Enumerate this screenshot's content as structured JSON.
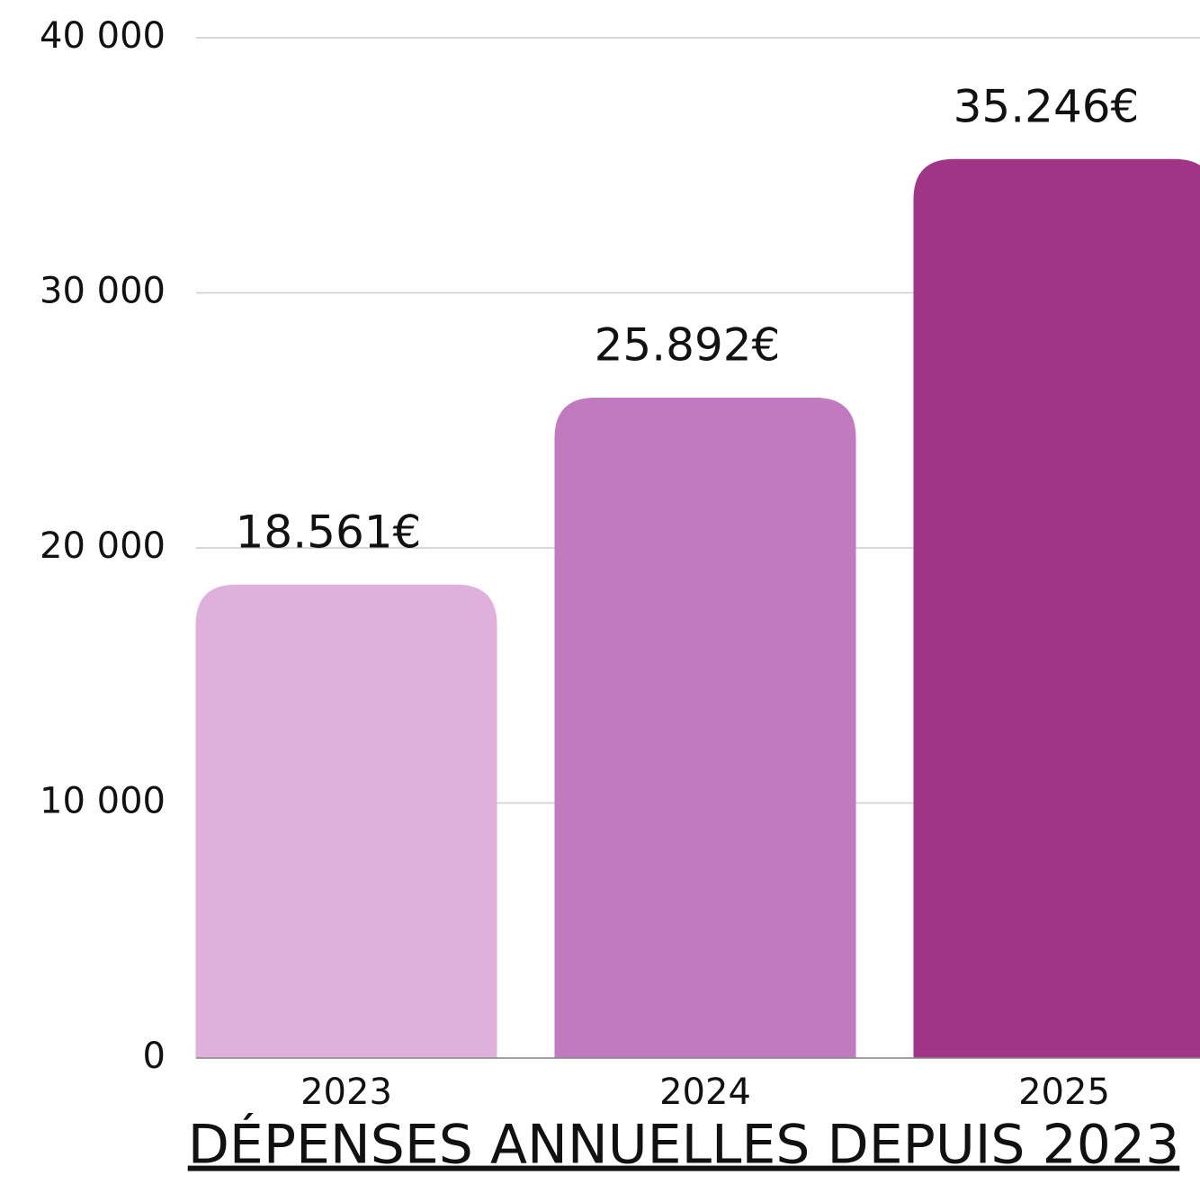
{
  "chart_data": {
    "type": "bar",
    "title": "DÉPENSES ANNUELLES DEPUIS 2023",
    "categories": [
      "2023",
      "2024",
      "2025"
    ],
    "values": [
      18561,
      25892,
      35246
    ],
    "value_labels": [
      "18.561€",
      "25.892€",
      "35.246€"
    ],
    "colors": [
      "#e0b0dc",
      "#c179c0",
      "#a03587"
    ],
    "ylim": [
      0,
      40000
    ],
    "yticks": [
      0,
      {
        "value": 10000,
        "label": "10 000"
      },
      {
        "value": 20000,
        "label": "20 000"
      },
      {
        "value": 30000,
        "label": "30 000"
      },
      {
        "value": 40000,
        "label": "40 000"
      }
    ],
    "grid": true
  }
}
